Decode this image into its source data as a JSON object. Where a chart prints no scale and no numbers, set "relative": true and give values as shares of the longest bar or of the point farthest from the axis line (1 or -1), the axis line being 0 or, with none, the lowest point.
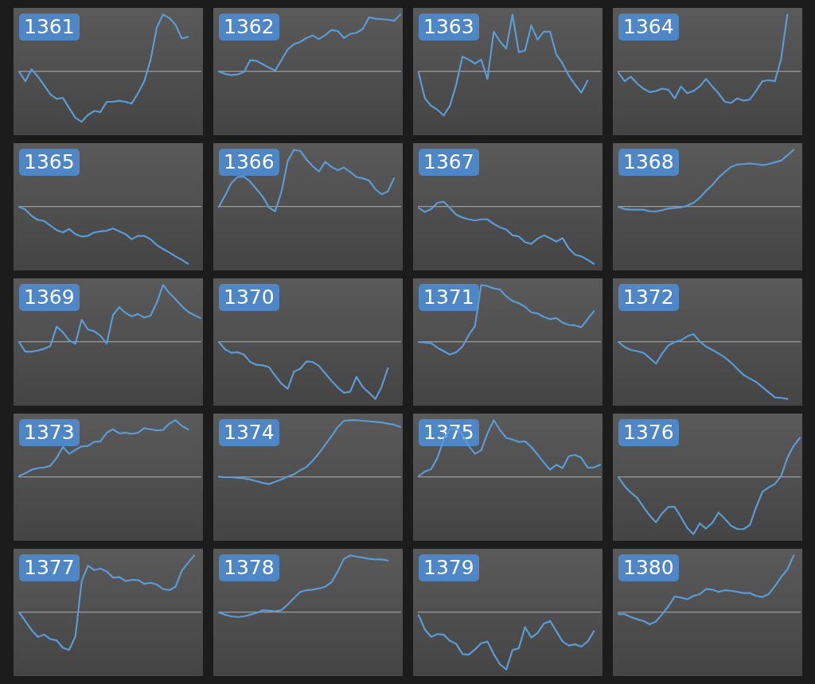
{
  "chart_data": [
    {
      "type": "line",
      "title": "1361",
      "relative": true,
      "categories": [
        null,
        null,
        null,
        null,
        null,
        null,
        null,
        null,
        null,
        null,
        null,
        null,
        null,
        null,
        null,
        null,
        null,
        null,
        null,
        null,
        null,
        null,
        null,
        null,
        null,
        null,
        null,
        null,
        null,
        null
      ],
      "color": "#5b9bd5",
      "values": [
        0,
        -0.17,
        0.04,
        -0.09,
        -0.24,
        -0.4,
        -0.48,
        -0.46,
        -0.64,
        -0.81,
        -0.88,
        -0.76,
        -0.69,
        -0.71,
        -0.53,
        -0.53,
        -0.51,
        -0.53,
        -0.56,
        -0.38,
        -0.17,
        0.2,
        0.77,
        1,
        0.94,
        0.82,
        0.58,
        0.61,
        null,
        null
      ]
    },
    {
      "type": "line",
      "title": "1362",
      "relative": true,
      "categories": [
        null,
        null,
        null,
        null,
        null,
        null,
        null,
        null,
        null,
        null,
        null,
        null,
        null,
        null,
        null,
        null,
        null,
        null,
        null,
        null,
        null,
        null,
        null,
        null,
        null,
        null,
        null,
        null,
        null,
        null
      ],
      "color": "#5b9bd5",
      "values": [
        0,
        -0.04,
        -0.06,
        -0.05,
        -0.01,
        0.2,
        0.19,
        0.13,
        0.07,
        0.02,
        0.2,
        0.39,
        0.48,
        0.52,
        0.59,
        0.63,
        0.57,
        0.64,
        0.73,
        0.71,
        0.59,
        0.66,
        0.68,
        0.75,
        0.95,
        0.93,
        0.92,
        0.91,
        0.89,
        1
      ]
    },
    {
      "type": "line",
      "title": "1363",
      "relative": true,
      "categories": [
        null,
        null,
        null,
        null,
        null,
        null,
        null,
        null,
        null,
        null,
        null,
        null,
        null,
        null,
        null,
        null,
        null,
        null,
        null,
        null,
        null,
        null,
        null,
        null,
        null,
        null,
        null,
        null,
        null,
        null
      ],
      "color": "#5b9bd5",
      "values": [
        -0.02,
        -0.47,
        -0.6,
        -0.67,
        -0.77,
        -0.6,
        -0.23,
        0.26,
        0.21,
        0.14,
        0.21,
        -0.13,
        0.7,
        0.53,
        0.4,
        1,
        0.34,
        0.37,
        0.81,
        0.56,
        0.7,
        0.7,
        0.3,
        0.14,
        -0.07,
        -0.23,
        -0.37,
        -0.16,
        null,
        null
      ]
    },
    {
      "type": "line",
      "title": "1364",
      "relative": true,
      "categories": [
        null,
        null,
        null,
        null,
        null,
        null,
        null,
        null,
        null,
        null,
        null,
        null,
        null,
        null,
        null,
        null,
        null,
        null,
        null,
        null,
        null,
        null,
        null,
        null,
        null,
        null,
        null,
        null,
        null,
        null
      ],
      "color": "#5b9bd5",
      "values": [
        -0.02,
        -0.17,
        -0.09,
        -0.21,
        -0.3,
        -0.36,
        -0.34,
        -0.3,
        -0.32,
        -0.47,
        -0.26,
        -0.38,
        -0.34,
        -0.26,
        -0.13,
        -0.26,
        -0.38,
        -0.53,
        -0.55,
        -0.47,
        -0.51,
        -0.49,
        -0.34,
        -0.17,
        -0.15,
        -0.17,
        0.22,
        1,
        null,
        null
      ]
    },
    {
      "type": "line",
      "title": "1365",
      "relative": true,
      "categories": [
        null,
        null,
        null,
        null,
        null,
        null,
        null,
        null,
        null,
        null,
        null,
        null,
        null,
        null,
        null,
        null,
        null,
        null,
        null,
        null,
        null,
        null,
        null,
        null,
        null,
        null,
        null,
        null,
        null,
        null
      ],
      "color": "#5b9bd5",
      "values": [
        0,
        -0.05,
        -0.16,
        -0.23,
        -0.25,
        -0.33,
        -0.41,
        -0.45,
        -0.39,
        -0.48,
        -0.52,
        -0.51,
        -0.45,
        -0.43,
        -0.42,
        -0.38,
        -0.43,
        -0.48,
        -0.57,
        -0.51,
        -0.51,
        -0.57,
        -0.67,
        -0.74,
        -0.8,
        -0.87,
        -0.93,
        -1,
        null,
        null
      ]
    },
    {
      "type": "line",
      "title": "1366",
      "relative": true,
      "categories": [
        null,
        null,
        null,
        null,
        null,
        null,
        null,
        null,
        null,
        null,
        null,
        null,
        null,
        null,
        null,
        null,
        null,
        null,
        null,
        null,
        null,
        null,
        null,
        null,
        null,
        null,
        null,
        null,
        null,
        null
      ],
      "color": "#5b9bd5",
      "values": [
        0,
        0.2,
        0.42,
        0.52,
        0.53,
        0.44,
        0.31,
        0.18,
        -0.01,
        -0.08,
        0.26,
        0.8,
        1,
        0.98,
        0.83,
        0.71,
        0.62,
        0.79,
        0.7,
        0.64,
        0.69,
        0.61,
        0.52,
        0.5,
        0.46,
        0.31,
        0.22,
        0.27,
        0.5,
        null
      ]
    },
    {
      "type": "line",
      "title": "1367",
      "relative": true,
      "categories": [
        null,
        null,
        null,
        null,
        null,
        null,
        null,
        null,
        null,
        null,
        null,
        null,
        null,
        null,
        null,
        null,
        null,
        null,
        null,
        null,
        null,
        null,
        null,
        null,
        null,
        null,
        null,
        null,
        null,
        null
      ],
      "color": "#5b9bd5",
      "values": [
        -0.02,
        -0.09,
        -0.04,
        0.07,
        0.09,
        -0.02,
        -0.14,
        -0.19,
        -0.22,
        -0.24,
        -0.22,
        -0.22,
        -0.3,
        -0.36,
        -0.4,
        -0.5,
        -0.52,
        -0.62,
        -0.65,
        -0.56,
        -0.5,
        -0.55,
        -0.61,
        -0.55,
        -0.73,
        -0.84,
        -0.87,
        -0.93,
        -1,
        null
      ]
    },
    {
      "type": "line",
      "title": "1368",
      "relative": true,
      "categories": [
        null,
        null,
        null,
        null,
        null,
        null,
        null,
        null,
        null,
        null,
        null,
        null,
        null,
        null,
        null,
        null,
        null,
        null,
        null,
        null,
        null,
        null,
        null,
        null,
        null,
        null,
        null,
        null,
        null,
        null
      ],
      "color": "#5b9bd5",
      "values": [
        0,
        -0.04,
        -0.05,
        -0.05,
        -0.05,
        -0.08,
        -0.08,
        -0.06,
        -0.03,
        -0.02,
        -0.01,
        0.02,
        0.07,
        0.16,
        0.28,
        0.38,
        0.51,
        0.61,
        0.7,
        0.74,
        0.75,
        0.76,
        0.75,
        0.73,
        0.75,
        0.78,
        0.81,
        0.9,
        1,
        null
      ]
    },
    {
      "type": "line",
      "title": "1369",
      "relative": true,
      "categories": [
        null,
        null,
        null,
        null,
        null,
        null,
        null,
        null,
        null,
        null,
        null,
        null,
        null,
        null,
        null,
        null,
        null,
        null,
        null,
        null,
        null,
        null,
        null,
        null,
        null,
        null,
        null,
        null,
        null,
        null
      ],
      "color": "#5b9bd5",
      "values": [
        0,
        -0.17,
        -0.17,
        -0.15,
        -0.12,
        -0.07,
        0.27,
        0.17,
        0.03,
        -0.03,
        0.39,
        0.22,
        0.19,
        0.11,
        -0.03,
        0.47,
        0.61,
        0.51,
        0.45,
        0.49,
        0.43,
        0.46,
        0.69,
        1,
        0.86,
        0.75,
        0.63,
        0.53,
        0.47,
        0.42
      ]
    },
    {
      "type": "line",
      "title": "1370",
      "relative": true,
      "categories": [
        null,
        null,
        null,
        null,
        null,
        null,
        null,
        null,
        null,
        null,
        null,
        null,
        null,
        null,
        null,
        null,
        null,
        null,
        null,
        null,
        null,
        null,
        null,
        null,
        null,
        null,
        null,
        null,
        null,
        null
      ],
      "color": "#5b9bd5",
      "values": [
        0,
        -0.13,
        -0.19,
        -0.18,
        -0.22,
        -0.35,
        -0.4,
        -0.41,
        -0.44,
        -0.59,
        -0.73,
        -0.82,
        -0.52,
        -0.47,
        -0.34,
        -0.35,
        -0.42,
        -0.55,
        -0.68,
        -0.8,
        -0.89,
        -0.87,
        -0.61,
        -0.79,
        -0.89,
        -1,
        -0.79,
        -0.46,
        null,
        null
      ]
    },
    {
      "type": "line",
      "title": "1371",
      "relative": true,
      "categories": [
        null,
        null,
        null,
        null,
        null,
        null,
        null,
        null,
        null,
        null,
        null,
        null,
        null,
        null,
        null,
        null,
        null,
        null,
        null,
        null,
        null,
        null,
        null,
        null,
        null,
        null,
        null,
        null,
        null,
        null
      ],
      "color": "#5b9bd5",
      "values": [
        0,
        -0.01,
        -0.02,
        -0.1,
        -0.16,
        -0.22,
        -0.18,
        -0.08,
        0.12,
        0.28,
        1,
        0.98,
        0.94,
        0.92,
        0.8,
        0.72,
        0.68,
        0.62,
        0.52,
        0.5,
        0.44,
        0.4,
        0.42,
        0.34,
        0.3,
        0.29,
        0.26,
        0.4,
        0.54,
        null
      ]
    },
    {
      "type": "line",
      "title": "1372",
      "relative": true,
      "categories": [
        null,
        null,
        null,
        null,
        null,
        null,
        null,
        null,
        null,
        null,
        null,
        null,
        null,
        null,
        null,
        null,
        null,
        null,
        null,
        null,
        null,
        null,
        null,
        null,
        null,
        null,
        null,
        null,
        null,
        null
      ],
      "color": "#5b9bd5",
      "values": [
        0,
        -0.09,
        -0.14,
        -0.16,
        -0.19,
        -0.28,
        -0.38,
        -0.2,
        -0.06,
        0,
        0.03,
        0.1,
        0.14,
        0.01,
        -0.08,
        -0.14,
        -0.2,
        -0.27,
        -0.36,
        -0.47,
        -0.58,
        -0.64,
        -0.7,
        -0.79,
        -0.88,
        -0.97,
        -0.98,
        -1,
        null,
        null
      ]
    },
    {
      "type": "line",
      "title": "1373",
      "relative": true,
      "categories": [
        null,
        null,
        null,
        null,
        null,
        null,
        null,
        null,
        null,
        null,
        null,
        null,
        null,
        null,
        null,
        null,
        null,
        null,
        null,
        null,
        null,
        null,
        null,
        null,
        null,
        null,
        null,
        null,
        null,
        null
      ],
      "color": "#5b9bd5",
      "values": [
        0.02,
        0.07,
        0.13,
        0.16,
        0.17,
        0.2,
        0.34,
        0.53,
        0.41,
        0.48,
        0.54,
        0.55,
        0.62,
        0.63,
        0.78,
        0.84,
        0.77,
        0.78,
        0.76,
        0.78,
        0.86,
        0.84,
        0.82,
        0.83,
        0.94,
        1,
        0.9,
        0.84,
        null,
        null
      ]
    },
    {
      "type": "line",
      "title": "1374",
      "relative": true,
      "categories": [
        null,
        null,
        null,
        null,
        null,
        null,
        null,
        null,
        null,
        null,
        null,
        null,
        null,
        null,
        null,
        null,
        null,
        null,
        null,
        null,
        null,
        null,
        null,
        null,
        null,
        null,
        null,
        null,
        null,
        null
      ],
      "color": "#5b9bd5",
      "values": [
        0.01,
        0,
        0,
        -0.01,
        -0.02,
        -0.04,
        -0.07,
        -0.1,
        -0.12,
        -0.08,
        -0.04,
        0.01,
        0.05,
        0.12,
        0.18,
        0.29,
        0.42,
        0.57,
        0.72,
        0.88,
        0.99,
        1,
        1,
        0.99,
        0.98,
        0.97,
        0.96,
        0.94,
        0.92,
        0.88
      ]
    },
    {
      "type": "line",
      "title": "1375",
      "relative": true,
      "categories": [
        null,
        null,
        null,
        null,
        null,
        null,
        null,
        null,
        null,
        null,
        null,
        null,
        null,
        null,
        null,
        null,
        null,
        null,
        null,
        null,
        null,
        null,
        null,
        null,
        null,
        null,
        null,
        null,
        null,
        null
      ],
      "color": "#5b9bd5",
      "values": [
        0.02,
        0.1,
        0.14,
        0.34,
        0.66,
        0.84,
        0.85,
        0.75,
        0.55,
        0.41,
        0.47,
        0.77,
        1,
        0.83,
        0.69,
        0.66,
        0.62,
        0.63,
        0.53,
        0.4,
        0.26,
        0.13,
        0.22,
        0.16,
        0.37,
        0.39,
        0.34,
        0.17,
        0.17,
        0.22
      ]
    },
    {
      "type": "line",
      "title": "1376",
      "relative": true,
      "categories": [
        null,
        null,
        null,
        null,
        null,
        null,
        null,
        null,
        null,
        null,
        null,
        null,
        null,
        null,
        null,
        null,
        null,
        null,
        null,
        null,
        null,
        null,
        null,
        null,
        null,
        null,
        null,
        null,
        null,
        null
      ],
      "color": "#5b9bd5",
      "values": [
        0,
        -0.16,
        -0.27,
        -0.36,
        -0.52,
        -0.67,
        -0.79,
        -0.63,
        -0.52,
        -0.52,
        -0.7,
        -0.89,
        -1,
        -0.81,
        -0.9,
        -0.8,
        -0.62,
        -0.73,
        -0.85,
        -0.91,
        -0.91,
        -0.84,
        -0.53,
        -0.26,
        -0.18,
        -0.12,
        0.02,
        0.34,
        0.55,
        0.69
      ]
    },
    {
      "type": "line",
      "title": "1377",
      "relative": true,
      "categories": [
        null,
        null,
        null,
        null,
        null,
        null,
        null,
        null,
        null,
        null,
        null,
        null,
        null,
        null,
        null,
        null,
        null,
        null,
        null,
        null,
        null,
        null,
        null,
        null,
        null,
        null,
        null,
        null,
        null,
        null
      ],
      "color": "#5b9bd5",
      "values": [
        0,
        -0.15,
        -0.31,
        -0.43,
        -0.39,
        -0.47,
        -0.49,
        -0.62,
        -0.66,
        -0.42,
        0.55,
        0.82,
        0.74,
        0.77,
        0.72,
        0.61,
        0.62,
        0.55,
        0.57,
        0.57,
        0.5,
        0.52,
        0.49,
        0.41,
        0.39,
        0.45,
        0.73,
        0.87,
        1,
        null
      ]
    },
    {
      "type": "line",
      "title": "1378",
      "relative": true,
      "categories": [
        null,
        null,
        null,
        null,
        null,
        null,
        null,
        null,
        null,
        null,
        null,
        null,
        null,
        null,
        null,
        null,
        null,
        null,
        null,
        null,
        null,
        null,
        null,
        null,
        null,
        null,
        null,
        null,
        null,
        null
      ],
      "color": "#5b9bd5",
      "values": [
        0,
        -0.04,
        -0.07,
        -0.08,
        -0.07,
        -0.04,
        -0.01,
        0.04,
        0.03,
        0.02,
        0.04,
        0.14,
        0.25,
        0.36,
        0.39,
        0.4,
        0.42,
        0.45,
        0.53,
        0.72,
        0.94,
        1,
        0.98,
        0.96,
        0.94,
        0.93,
        0.93,
        0.91,
        null,
        null
      ]
    },
    {
      "type": "line",
      "title": "1379",
      "relative": true,
      "categories": [
        null,
        null,
        null,
        null,
        null,
        null,
        null,
        null,
        null,
        null,
        null,
        null,
        null,
        null,
        null,
        null,
        null,
        null,
        null,
        null,
        null,
        null,
        null,
        null,
        null,
        null,
        null,
        null,
        null,
        null
      ],
      "color": "#5b9bd5",
      "values": [
        -0.05,
        -0.3,
        -0.43,
        -0.38,
        -0.39,
        -0.5,
        -0.55,
        -0.73,
        -0.74,
        -0.65,
        -0.54,
        -0.51,
        -0.73,
        -0.91,
        -1,
        -0.66,
        -0.63,
        -0.26,
        -0.44,
        -0.36,
        -0.2,
        -0.15,
        -0.33,
        -0.51,
        -0.58,
        -0.56,
        -0.6,
        -0.51,
        -0.33,
        null
      ]
    },
    {
      "type": "line",
      "title": "1380",
      "relative": true,
      "categories": [
        null,
        null,
        null,
        null,
        null,
        null,
        null,
        null,
        null,
        null,
        null,
        null,
        null,
        null,
        null,
        null,
        null,
        null,
        null,
        null,
        null,
        null,
        null,
        null,
        null,
        null,
        null,
        null,
        null,
        null
      ],
      "color": "#5b9bd5",
      "values": [
        -0.03,
        -0.03,
        -0.08,
        -0.12,
        -0.15,
        -0.21,
        -0.16,
        -0.03,
        0.11,
        0.28,
        0.26,
        0.23,
        0.29,
        0.32,
        0.41,
        0.4,
        0.36,
        0.39,
        0.38,
        0.36,
        0.34,
        0.34,
        0.29,
        0.27,
        0.32,
        0.46,
        0.62,
        0.75,
        1,
        null
      ]
    }
  ]
}
